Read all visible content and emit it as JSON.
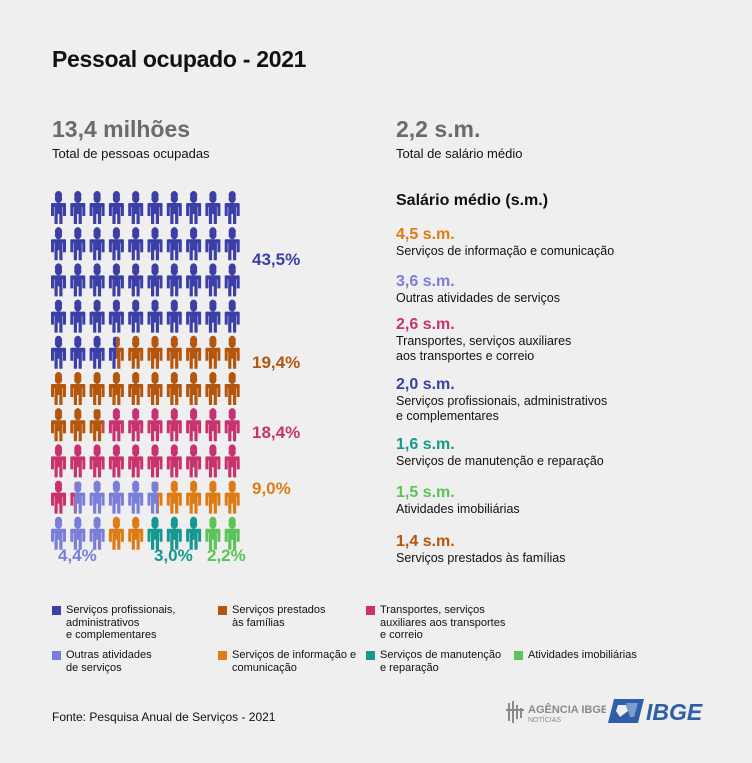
{
  "title": "Pessoal ocupado - 2021",
  "total": {
    "value": "13,4 milhões",
    "label": "Total de pessoas ocupadas"
  },
  "salary_total": {
    "value": "2,2 s.m.",
    "label": "Total de salário médio"
  },
  "salary_section_title": "Salário médio (s.m.)",
  "colors": {
    "profissionais": "#3b3fa6",
    "familias": "#b5560f",
    "transportes": "#c8336f",
    "informacao": "#de7b14",
    "outras": "#7a7ed8",
    "manutencao": "#16988e",
    "imobiliarias": "#5cc35a"
  },
  "chart_data": {
    "type": "pictogram",
    "title": "Pessoal ocupado - 2021",
    "grid": {
      "columns": 10,
      "rows": 10,
      "unit": "percent"
    },
    "series": [
      {
        "key": "profissionais",
        "name": "Serviços profissionais, administrativos e complementares",
        "percent": 43.5,
        "label": "43,5%",
        "salary": 2.0,
        "salary_label": "2,0 s.m."
      },
      {
        "key": "familias",
        "name": "Serviços prestados às famílias",
        "percent": 19.4,
        "label": "19,4%",
        "salary": 1.4,
        "salary_label": "1,4 s.m."
      },
      {
        "key": "transportes",
        "name": "Transportes, serviços auxiliares aos transportes e correio",
        "percent": 18.4,
        "label": "18,4%",
        "salary": 2.6,
        "salary_label": "2,6 s.m."
      },
      {
        "key": "outras",
        "name": "Outras atividades de serviços",
        "percent": 4.4,
        "label": "4,4%",
        "salary": 3.6,
        "salary_label": "3,6 s.m."
      },
      {
        "key": "informacao",
        "name": "Serviços de informação e comunicação",
        "percent": 9.0,
        "label": "9,0%",
        "salary": 4.5,
        "salary_label": "4,5 s.m."
      },
      {
        "key": "manutencao",
        "name": "Serviços de manutenção e reparação",
        "percent": 3.0,
        "label": "3,0%",
        "salary": 1.6,
        "salary_label": "1,6 s.m."
      },
      {
        "key": "imobiliarias",
        "name": "Atividades imobiliárias",
        "percent": 2.2,
        "label": "2,2%",
        "salary": 1.5,
        "salary_label": "1,5 s.m."
      }
    ]
  },
  "salary_list": [
    {
      "value": "4,5 s.m.",
      "label": "Serviços de informação e comunicação",
      "color_key": "informacao"
    },
    {
      "value": "3,6 s.m.",
      "label": "Outras atividades de serviços",
      "color_key": "outras"
    },
    {
      "value": "2,6 s.m.",
      "label": "Transportes, serviços auxiliares\naos transportes e correio",
      "color_key": "transportes"
    },
    {
      "value": "2,0 s.m.",
      "label": "Serviços profissionais, administrativos\ne complementares",
      "color_key": "profissionais"
    },
    {
      "value": "1,6 s.m.",
      "label": "Serviços de manutenção e reparação",
      "color_key": "manutencao"
    },
    {
      "value": "1,5 s.m.",
      "label": "Atividades imobiliárias",
      "color_key": "imobiliarias"
    },
    {
      "value": "1,4 s.m.",
      "label": "Serviços prestados às famílias",
      "color_key": "familias"
    }
  ],
  "legend": [
    {
      "label": "Serviços profissionais,\nadministrativos\ne complementares",
      "color_key": "profissionais"
    },
    {
      "label": "Serviços prestados\nàs famílias",
      "color_key": "familias"
    },
    {
      "label": "Transportes, serviços\nauxiliares aos transportes\ne correio",
      "color_key": "transportes"
    },
    {
      "label": "Outras atividades\nde serviços",
      "color_key": "outras"
    },
    {
      "label": "Serviços de informação e\ncomunicação",
      "color_key": "informacao"
    },
    {
      "label": "Serviços de manutenção\ne reparação",
      "color_key": "manutencao"
    },
    {
      "label": "Atividades imobiliárias",
      "color_key": "imobiliarias"
    }
  ],
  "source": "Fonte: Pesquisa Anual de Serviços - 2021",
  "logos": {
    "agencia": "AGÊNCIA IBGE",
    "agencia_sub": "NOTÍCIAS",
    "ibge": "IBGE"
  }
}
